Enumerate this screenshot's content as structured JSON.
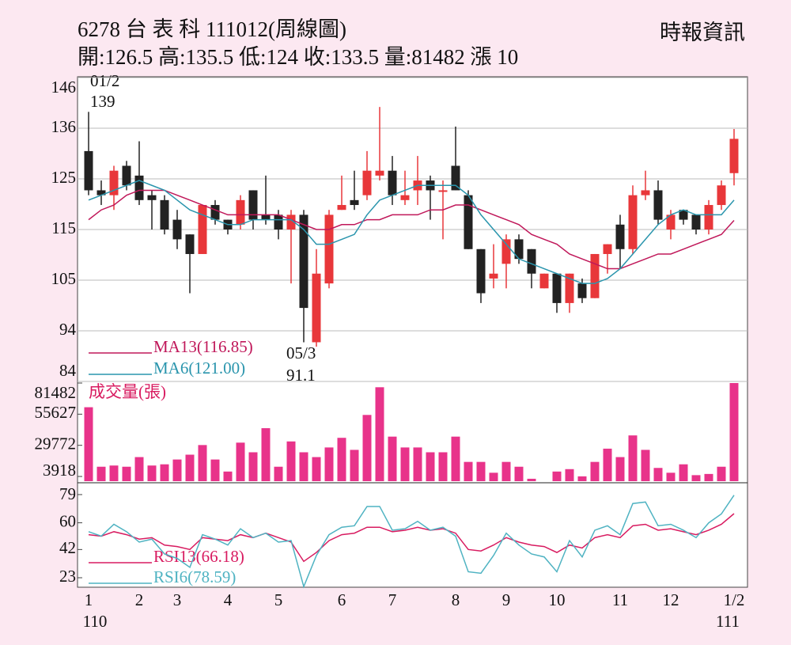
{
  "header": {
    "title": "6278  台 表 科 111012(周線圖)",
    "source": "時報資訊",
    "stats": "開:126.5 高:135.5 低:124 收:133.5 量:81482 漲 10"
  },
  "chart_data": [
    {
      "type": "candlestick",
      "categories": [
        "1",
        null,
        null,
        null,
        "2",
        null,
        null,
        "3",
        null,
        null,
        null,
        "4",
        null,
        null,
        null,
        "5",
        null,
        null,
        null,
        null,
        "6",
        null,
        null,
        null,
        "7",
        null,
        null,
        null,
        null,
        "8",
        null,
        null,
        null,
        "9",
        null,
        null,
        null,
        "10",
        null,
        null,
        null,
        null,
        "11",
        null,
        null,
        null,
        "12",
        null,
        null,
        null,
        null,
        "1/2"
      ],
      "year_labels": [
        "110",
        null,
        null,
        null,
        null,
        null,
        null,
        null,
        null,
        null,
        null,
        null,
        null,
        null,
        null,
        null,
        null,
        null,
        null,
        null,
        null,
        null,
        null,
        null,
        null,
        null,
        null,
        null,
        null,
        null,
        null,
        null,
        null,
        null,
        null,
        null,
        null,
        null,
        null,
        null,
        null,
        null,
        null,
        null,
        null,
        null,
        null,
        null,
        null,
        null,
        null,
        "111"
      ],
      "open": [
        131,
        123,
        122,
        128,
        126,
        122,
        121,
        117,
        114,
        110,
        120,
        117,
        116,
        123,
        118,
        118,
        115,
        118,
        92,
        104,
        119,
        121,
        122,
        126,
        127,
        121,
        123,
        125,
        123,
        128,
        122,
        111,
        105,
        108,
        113,
        111,
        103,
        106,
        100,
        104,
        101,
        110,
        116,
        111,
        122,
        123,
        115,
        119,
        118,
        115,
        120,
        126.5
      ],
      "high": [
        139,
        125,
        128,
        129,
        133,
        123,
        122,
        119,
        114,
        120,
        121,
        117,
        122,
        123,
        126,
        119,
        119,
        119,
        111,
        119,
        126,
        127,
        131,
        140,
        130,
        127,
        130,
        126,
        125,
        136,
        123,
        111,
        112,
        114,
        114,
        111,
        106,
        106,
        106,
        105,
        110,
        112,
        118,
        124,
        127,
        125,
        119,
        119,
        118,
        121,
        125,
        135.5
      ],
      "low": [
        122,
        120,
        119,
        123,
        120,
        115,
        114,
        111,
        102,
        110,
        116,
        114,
        115,
        115,
        116,
        113,
        104,
        92,
        91.1,
        103,
        119,
        119,
        121,
        125,
        120,
        120,
        120,
        117,
        113,
        123,
        111,
        100,
        103,
        103,
        108,
        103,
        103,
        98,
        98,
        100,
        101,
        106,
        107,
        110,
        121,
        116,
        113,
        116,
        114,
        114,
        119,
        124
      ],
      "close": [
        123,
        122,
        127,
        124,
        121,
        121,
        115,
        113,
        110,
        120,
        117,
        115,
        121,
        117,
        117,
        115,
        118,
        99,
        106,
        118,
        120,
        120,
        127,
        127,
        122,
        122,
        125,
        123,
        123,
        123,
        111,
        102,
        106,
        113,
        109,
        106,
        106,
        100,
        106,
        101,
        110,
        112,
        111,
        122,
        123,
        117,
        118,
        117,
        115,
        120,
        124,
        133.5
      ],
      "up_color": "#e8373a",
      "down_color": "#222222",
      "series": [
        {
          "name": "MA13(116.85)",
          "color": "#c0185a",
          "values": [
            117,
            119,
            120,
            122,
            123,
            123,
            123,
            122,
            121,
            120,
            119,
            118,
            118,
            118,
            118,
            118,
            117,
            116,
            115,
            115,
            116,
            116,
            117,
            117,
            118,
            118,
            118,
            119,
            119,
            120,
            120,
            119,
            118,
            117,
            116,
            114,
            113,
            112,
            110,
            109,
            108,
            107,
            107,
            108,
            109,
            110,
            110,
            111,
            112,
            113,
            114,
            116.85
          ]
        },
        {
          "name": "MA6(121.00)",
          "color": "#2a95ad",
          "values": [
            121,
            122,
            123,
            124,
            125,
            124,
            123,
            121,
            119,
            118,
            117,
            116,
            116,
            117,
            117,
            117,
            117,
            115,
            112,
            112,
            113,
            114,
            118,
            121,
            122,
            123,
            124,
            124,
            124,
            124,
            122,
            118,
            115,
            112,
            109,
            108,
            107,
            106,
            105,
            104,
            104,
            105,
            107,
            110,
            113,
            116,
            118,
            119,
            118,
            118,
            118,
            121.0
          ]
        }
      ],
      "annotations": [
        [
          "01/2",
          "139"
        ],
        [
          "05/3",
          "91.1"
        ]
      ],
      "ylim": [
        84,
        146
      ],
      "yticks": [
        84,
        {
          "value": 94.33,
          "label": "94"
        },
        {
          "value": 104.67,
          "label": "105"
        },
        115,
        {
          "value": 125.33,
          "label": "125"
        },
        {
          "value": 135.67,
          "label": "136"
        },
        146
      ],
      "grid": true
    },
    {
      "type": "bar",
      "title": "成交量(張)",
      "color": "#e8338a",
      "values": [
        61400,
        12000,
        13000,
        12000,
        20000,
        13000,
        14000,
        18000,
        22000,
        30000,
        18000,
        8000,
        32000,
        24000,
        44000,
        12000,
        33000,
        24000,
        20000,
        28000,
        36000,
        26000,
        55000,
        78000,
        37000,
        28000,
        28000,
        24000,
        24000,
        37000,
        16000,
        16000,
        7000,
        16000,
        12000,
        2000,
        0,
        8000,
        10000,
        4000,
        16000,
        27000,
        20000,
        38000,
        26000,
        11000,
        7000,
        14000,
        5000,
        6000,
        12000,
        81482
      ],
      "ylim": [
        0,
        81482
      ],
      "yticks": [
        81482,
        55627,
        29772,
        3918
      ]
    },
    {
      "type": "line",
      "series": [
        {
          "name": "RSI13(66.18)",
          "color": "#d81b60",
          "values": [
            52,
            51,
            54,
            52,
            49,
            50,
            45,
            44,
            42,
            50,
            49,
            48,
            52,
            50,
            53,
            50,
            47,
            34,
            40,
            48,
            52,
            53,
            57,
            57,
            54,
            55,
            57,
            55,
            56,
            53,
            42,
            41,
            45,
            50,
            47,
            45,
            44,
            40,
            45,
            43,
            50,
            52,
            50,
            58,
            59,
            55,
            56,
            54,
            52,
            55,
            59,
            66.18
          ]
        },
        {
          "name": "RSI6(78.59)",
          "color": "#4fb3c2",
          "values": [
            54,
            51,
            59,
            54,
            47,
            49,
            39,
            36,
            30,
            52,
            49,
            45,
            56,
            50,
            53,
            47,
            48,
            17,
            38,
            52,
            57,
            58,
            71,
            71,
            55,
            56,
            61,
            55,
            57,
            51,
            27,
            26,
            38,
            53,
            45,
            39,
            37,
            27,
            48,
            37,
            55,
            58,
            52,
            73,
            74,
            58,
            59,
            55,
            50,
            60,
            66,
            78.59
          ]
        }
      ],
      "ylim": [
        16.6,
        85.9
      ],
      "yticks": [
        79,
        60,
        42,
        23
      ]
    }
  ]
}
